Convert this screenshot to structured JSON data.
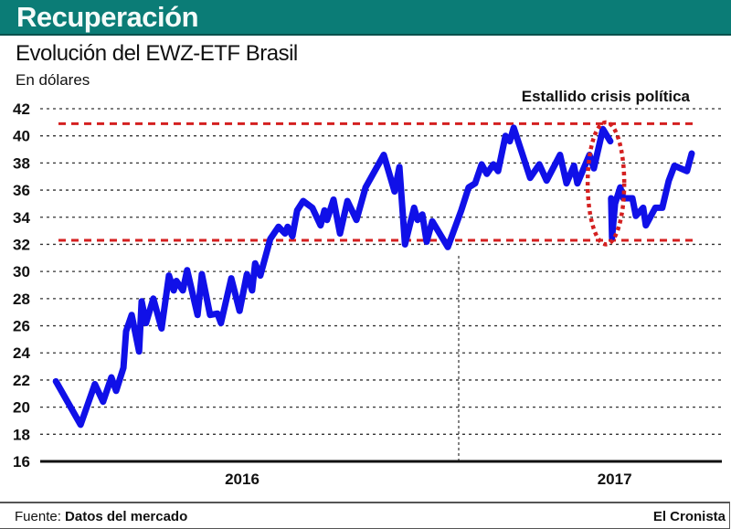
{
  "header": {
    "banner": "Recuperación"
  },
  "chart_data": {
    "type": "line",
    "title": "Evolución del EWZ-ETF Brasil",
    "subtitle": "En dólares",
    "xlabel": "",
    "ylabel": "En dólares",
    "ylim": [
      16,
      42
    ],
    "xlim": [
      2015.94,
      2017.62
    ],
    "yticks": [
      "16",
      "18",
      "20",
      "22",
      "24",
      "26",
      "28",
      "30",
      "32",
      "34",
      "36",
      "38",
      "40",
      "42"
    ],
    "xtick_labels": [
      {
        "label": "2016",
        "x": 2016.5
      },
      {
        "label": "2017",
        "x": 2017.36
      }
    ],
    "year_divider": 2017.0,
    "grid": true,
    "series": [
      {
        "name": "EWZ-ETF Brasil",
        "color": "#1010e8",
        "x": [
          2016.07,
          2016.127,
          2016.16,
          2016.179,
          2016.198,
          2016.209,
          2016.226,
          2016.232,
          2016.245,
          2016.262,
          2016.268,
          2016.278,
          2016.295,
          2016.314,
          2016.331,
          2016.342,
          2016.348,
          2016.363,
          2016.373,
          2016.397,
          2016.407,
          2016.426,
          2016.443,
          2016.451,
          2016.475,
          2016.494,
          2016.511,
          2016.523,
          2016.53,
          2016.542,
          2016.565,
          2016.584,
          2016.599,
          2016.605,
          2016.616,
          2016.627,
          2016.641,
          2016.662,
          2016.681,
          2016.69,
          2016.696,
          2016.711,
          2016.726,
          2016.743,
          2016.764,
          2016.785,
          2016.827,
          2016.852,
          2016.863,
          2016.876,
          2016.897,
          2016.905,
          2016.916,
          2016.926,
          2016.939,
          2016.975,
          2017.006,
          2017.023,
          2017.038,
          2017.053,
          2017.065,
          2017.08,
          2017.091,
          2017.108,
          2017.118,
          2017.127,
          2017.165,
          2017.186,
          2017.203,
          2017.234,
          2017.249,
          2017.266,
          2017.274,
          2017.302,
          2017.312,
          2017.333,
          2017.35,
          null,
          2017.352,
          2017.354,
          2017.361,
          2017.373,
          2017.38,
          2017.401,
          2017.409,
          2017.426,
          2017.432,
          2017.454,
          2017.47,
          2017.485,
          2017.498,
          2017.527,
          2017.538
        ],
        "values": [
          21.9,
          18.7,
          21.7,
          20.4,
          22.2,
          21.2,
          22.9,
          25.6,
          26.8,
          24.1,
          27.8,
          26.2,
          28.0,
          25.8,
          29.7,
          28.6,
          29.3,
          28.6,
          30.1,
          26.8,
          29.8,
          26.8,
          26.9,
          26.2,
          29.5,
          27.1,
          29.8,
          28.6,
          30.6,
          29.7,
          32.4,
          33.3,
          32.8,
          33.3,
          32.6,
          34.5,
          35.2,
          34.7,
          33.4,
          34.5,
          33.8,
          35.3,
          32.8,
          35.2,
          33.8,
          36.2,
          38.6,
          35.9,
          37.7,
          32.0,
          34.7,
          33.8,
          34.2,
          32.2,
          33.7,
          31.8,
          34.5,
          36.2,
          36.5,
          37.9,
          37.2,
          37.9,
          37.4,
          40.0,
          39.6,
          40.6,
          36.9,
          37.9,
          36.7,
          38.6,
          36.5,
          37.8,
          36.5,
          38.6,
          37.6,
          40.5,
          39.6,
          null,
          35.4,
          32.5,
          35.0,
          36.2,
          35.4,
          35.4,
          34.1,
          34.7,
          33.4,
          34.7,
          34.7,
          36.7,
          37.8,
          37.4,
          38.7
        ]
      }
    ],
    "reference_lines": [
      {
        "value": 40.9,
        "color": "#d42020",
        "style": "dashed"
      },
      {
        "value": 32.3,
        "color": "#d42020",
        "style": "dashed"
      }
    ],
    "annotations": [
      {
        "text": "Estallido crisis política",
        "x_center": 2017.34,
        "y_range": [
          32.0,
          41.0
        ],
        "shape": "dotted-ellipse",
        "color": "#d42020"
      }
    ]
  },
  "footer": {
    "source_label": "Fuente:",
    "source": "Datos del mercado",
    "brand": "El Cronista"
  }
}
